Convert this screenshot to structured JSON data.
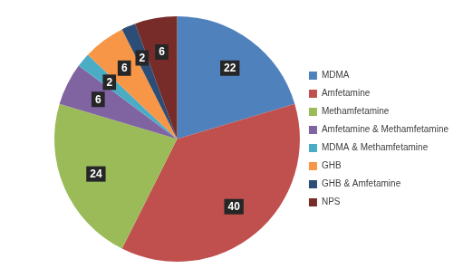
{
  "chart_data": {
    "type": "pie",
    "categories": [
      "MDMA",
      "Amfetamine",
      "Methamfetamine",
      "Amfetamine & Methamfetamine",
      "MDMA & Methamfetamine",
      "GHB",
      "GHB & Amfetamine",
      "NPS"
    ],
    "values": [
      22,
      40,
      24,
      6,
      2,
      6,
      2,
      6
    ],
    "colors": [
      "#4f81bd",
      "#c0504d",
      "#9bbb59",
      "#8064a2",
      "#4bacc6",
      "#f79646",
      "#2c4d75",
      "#772c2a"
    ],
    "data_labels": true,
    "legend": "right"
  }
}
